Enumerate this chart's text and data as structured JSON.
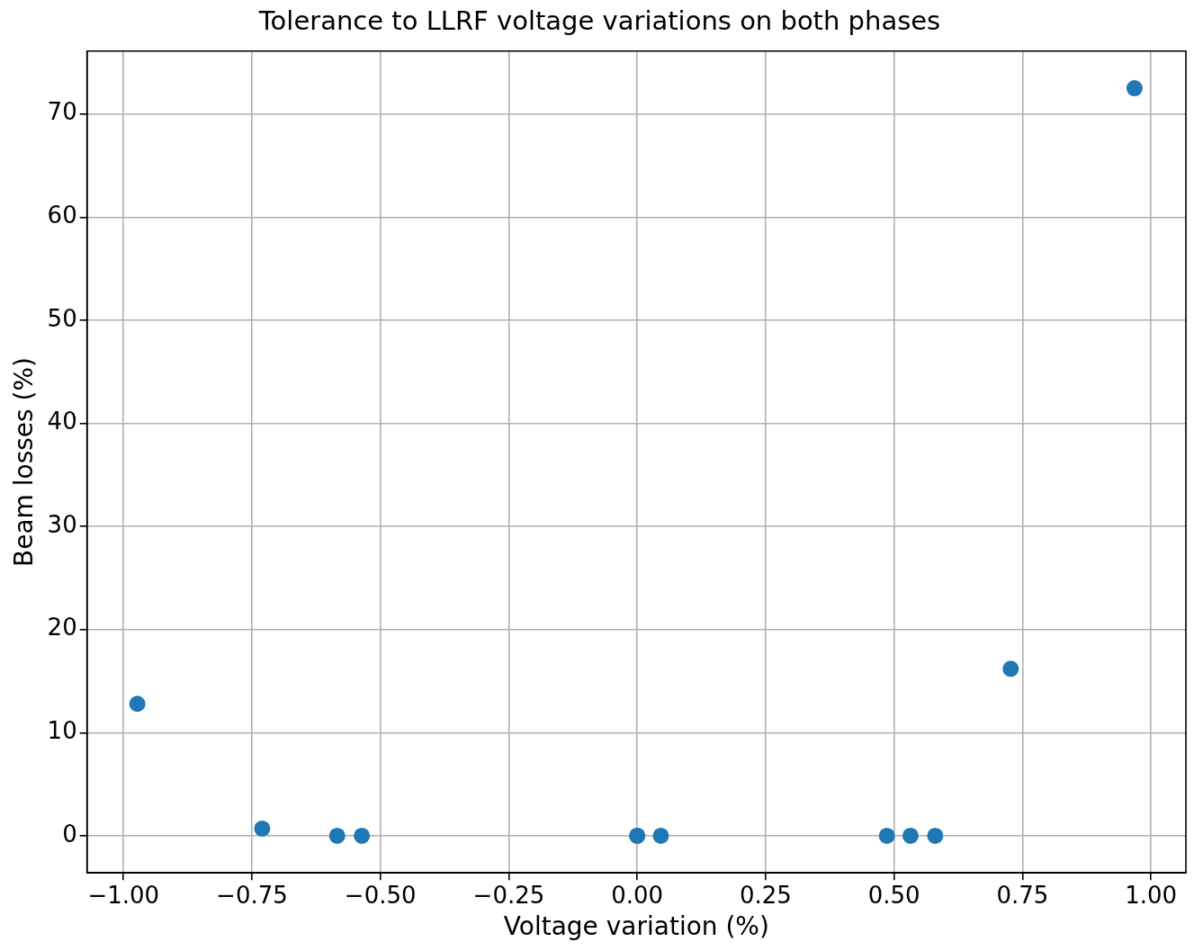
{
  "chart_data": {
    "type": "scatter",
    "title": "Tolerance to LLRF voltage variations on both phases",
    "xlabel": "Voltage variation (%)",
    "ylabel": "Beam losses (%)",
    "x": [
      -0.973,
      -0.73,
      -0.584,
      -0.536,
      0,
      0,
      0.046,
      0.486,
      0.532,
      0.58,
      0.727,
      0.968
    ],
    "series": [
      {
        "color": "#1f77b4",
        "values": [
          12.8,
          0.7,
          0,
          0,
          0,
          0,
          0,
          0,
          0,
          0,
          16.2,
          72.5
        ]
      }
    ],
    "xlim": [
      -1.071,
      1.068
    ],
    "ylim": [
      -3.6,
      76.1
    ],
    "xticks": [
      {
        "value": -1,
        "label": "−1.00"
      },
      {
        "value": -0.75,
        "label": "−0.75"
      },
      {
        "value": -0.5,
        "label": "−0.50"
      },
      {
        "value": -0.25,
        "label": "−0.25"
      },
      {
        "value": 0,
        "label": "0.00"
      },
      {
        "value": 0.25,
        "label": "0.25"
      },
      {
        "value": 0.5,
        "label": "0.50"
      },
      {
        "value": 0.75,
        "label": "0.75"
      },
      {
        "value": 1,
        "label": "1.00"
      }
    ],
    "yticks": [
      0,
      10,
      20,
      30,
      40,
      50,
      60,
      70
    ],
    "grid": true,
    "marker": "circle",
    "legend": false
  }
}
